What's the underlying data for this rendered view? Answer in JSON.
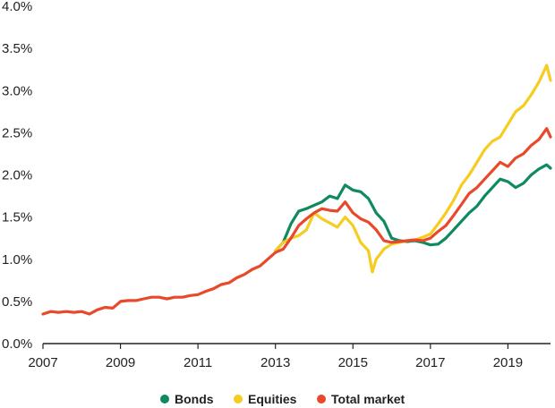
{
  "chart_data": {
    "type": "line",
    "title": "",
    "xlabel": "",
    "ylabel": "",
    "xlim": [
      2007,
      2020.1
    ],
    "ylim": [
      0,
      4.0
    ],
    "grid": false,
    "legend_position": "bottom",
    "x_ticks": [
      "2007",
      "2009",
      "2011",
      "2013",
      "2015",
      "2017",
      "2019"
    ],
    "y_ticks": [
      "0.0%",
      "0.5%",
      "1.0%",
      "1.5%",
      "2.0%",
      "2.5%",
      "3.0%",
      "3.5%",
      "4.0%"
    ],
    "colors": {
      "bonds": "#0f8a5f",
      "equities": "#f5cc1f",
      "total_market": "#e8492a",
      "axis": "#222222"
    },
    "series": [
      {
        "name": "Bonds",
        "color": "#0f8a5f",
        "points": [
          [
            2013.0,
            1.1
          ],
          [
            2013.2,
            1.2
          ],
          [
            2013.4,
            1.42
          ],
          [
            2013.6,
            1.57
          ],
          [
            2013.8,
            1.6
          ],
          [
            2014.0,
            1.64
          ],
          [
            2014.2,
            1.68
          ],
          [
            2014.4,
            1.75
          ],
          [
            2014.6,
            1.72
          ],
          [
            2014.8,
            1.88
          ],
          [
            2015.0,
            1.82
          ],
          [
            2015.2,
            1.8
          ],
          [
            2015.4,
            1.72
          ],
          [
            2015.6,
            1.55
          ],
          [
            2015.8,
            1.45
          ],
          [
            2016.0,
            1.25
          ],
          [
            2016.2,
            1.22
          ],
          [
            2016.4,
            1.21
          ],
          [
            2016.6,
            1.22
          ],
          [
            2016.8,
            1.2
          ],
          [
            2017.0,
            1.17
          ],
          [
            2017.2,
            1.18
          ],
          [
            2017.4,
            1.25
          ],
          [
            2017.6,
            1.35
          ],
          [
            2017.8,
            1.45
          ],
          [
            2018.0,
            1.55
          ],
          [
            2018.2,
            1.63
          ],
          [
            2018.4,
            1.75
          ],
          [
            2018.6,
            1.85
          ],
          [
            2018.8,
            1.95
          ],
          [
            2019.0,
            1.92
          ],
          [
            2019.2,
            1.85
          ],
          [
            2019.4,
            1.9
          ],
          [
            2019.6,
            2.0
          ],
          [
            2019.8,
            2.07
          ],
          [
            2020.0,
            2.12
          ],
          [
            2020.1,
            2.08
          ]
        ]
      },
      {
        "name": "Equities",
        "color": "#f5cc1f",
        "points": [
          [
            2013.0,
            1.1
          ],
          [
            2013.2,
            1.2
          ],
          [
            2013.4,
            1.25
          ],
          [
            2013.6,
            1.28
          ],
          [
            2013.8,
            1.35
          ],
          [
            2014.0,
            1.55
          ],
          [
            2014.2,
            1.48
          ],
          [
            2014.4,
            1.43
          ],
          [
            2014.6,
            1.38
          ],
          [
            2014.8,
            1.5
          ],
          [
            2015.0,
            1.4
          ],
          [
            2015.2,
            1.2
          ],
          [
            2015.4,
            1.1
          ],
          [
            2015.5,
            0.85
          ],
          [
            2015.6,
            1.0
          ],
          [
            2015.8,
            1.12
          ],
          [
            2016.0,
            1.18
          ],
          [
            2016.2,
            1.2
          ],
          [
            2016.4,
            1.22
          ],
          [
            2016.6,
            1.23
          ],
          [
            2016.8,
            1.26
          ],
          [
            2017.0,
            1.3
          ],
          [
            2017.2,
            1.42
          ],
          [
            2017.4,
            1.55
          ],
          [
            2017.6,
            1.7
          ],
          [
            2017.8,
            1.88
          ],
          [
            2018.0,
            2.0
          ],
          [
            2018.2,
            2.15
          ],
          [
            2018.4,
            2.3
          ],
          [
            2018.6,
            2.4
          ],
          [
            2018.8,
            2.45
          ],
          [
            2019.0,
            2.6
          ],
          [
            2019.2,
            2.75
          ],
          [
            2019.4,
            2.82
          ],
          [
            2019.6,
            2.95
          ],
          [
            2019.8,
            3.1
          ],
          [
            2020.0,
            3.3
          ],
          [
            2020.1,
            3.12
          ]
        ]
      },
      {
        "name": "Total market",
        "color": "#e8492a",
        "points": [
          [
            2007.0,
            0.35
          ],
          [
            2007.2,
            0.38
          ],
          [
            2007.4,
            0.37
          ],
          [
            2007.6,
            0.38
          ],
          [
            2007.8,
            0.37
          ],
          [
            2008.0,
            0.38
          ],
          [
            2008.2,
            0.35
          ],
          [
            2008.4,
            0.4
          ],
          [
            2008.6,
            0.43
          ],
          [
            2008.8,
            0.42
          ],
          [
            2009.0,
            0.5
          ],
          [
            2009.2,
            0.51
          ],
          [
            2009.4,
            0.51
          ],
          [
            2009.6,
            0.53
          ],
          [
            2009.8,
            0.55
          ],
          [
            2010.0,
            0.55
          ],
          [
            2010.2,
            0.53
          ],
          [
            2010.4,
            0.55
          ],
          [
            2010.6,
            0.55
          ],
          [
            2010.8,
            0.57
          ],
          [
            2011.0,
            0.58
          ],
          [
            2011.2,
            0.62
          ],
          [
            2011.4,
            0.65
          ],
          [
            2011.6,
            0.7
          ],
          [
            2011.8,
            0.72
          ],
          [
            2012.0,
            0.78
          ],
          [
            2012.2,
            0.82
          ],
          [
            2012.4,
            0.88
          ],
          [
            2012.6,
            0.92
          ],
          [
            2012.8,
            1.0
          ],
          [
            2013.0,
            1.08
          ],
          [
            2013.2,
            1.12
          ],
          [
            2013.4,
            1.25
          ],
          [
            2013.6,
            1.4
          ],
          [
            2013.8,
            1.48
          ],
          [
            2014.0,
            1.55
          ],
          [
            2014.2,
            1.6
          ],
          [
            2014.4,
            1.58
          ],
          [
            2014.6,
            1.57
          ],
          [
            2014.8,
            1.68
          ],
          [
            2015.0,
            1.55
          ],
          [
            2015.2,
            1.48
          ],
          [
            2015.4,
            1.44
          ],
          [
            2015.6,
            1.35
          ],
          [
            2015.8,
            1.22
          ],
          [
            2016.0,
            1.2
          ],
          [
            2016.2,
            1.21
          ],
          [
            2016.4,
            1.22
          ],
          [
            2016.6,
            1.23
          ],
          [
            2016.8,
            1.22
          ],
          [
            2017.0,
            1.25
          ],
          [
            2017.2,
            1.33
          ],
          [
            2017.4,
            1.4
          ],
          [
            2017.6,
            1.52
          ],
          [
            2017.8,
            1.65
          ],
          [
            2018.0,
            1.78
          ],
          [
            2018.2,
            1.85
          ],
          [
            2018.4,
            1.95
          ],
          [
            2018.6,
            2.05
          ],
          [
            2018.8,
            2.15
          ],
          [
            2019.0,
            2.1
          ],
          [
            2019.2,
            2.2
          ],
          [
            2019.4,
            2.25
          ],
          [
            2019.6,
            2.35
          ],
          [
            2019.8,
            2.42
          ],
          [
            2020.0,
            2.55
          ],
          [
            2020.1,
            2.45
          ]
        ]
      }
    ]
  }
}
